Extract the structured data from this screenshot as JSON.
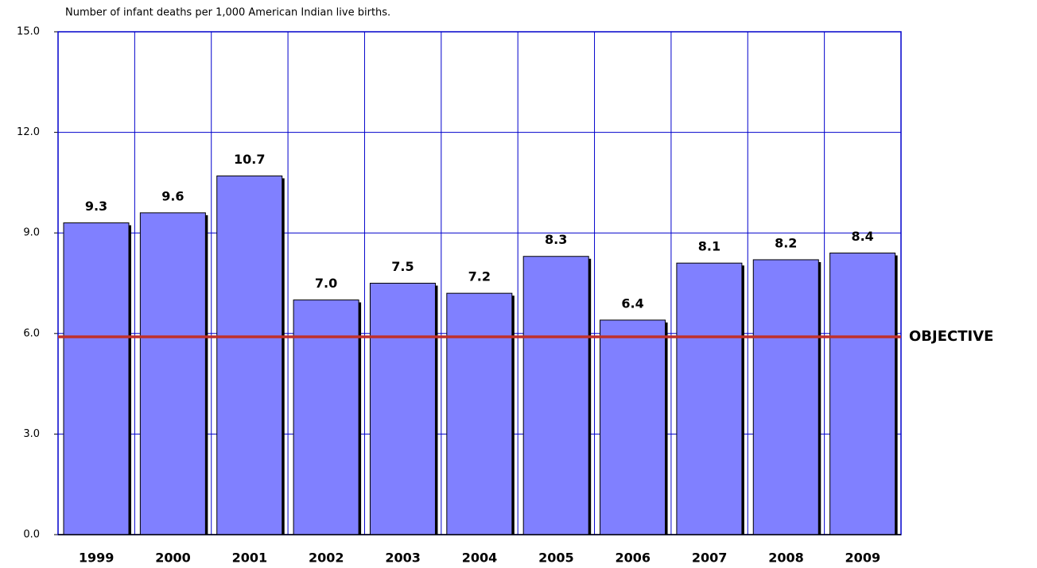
{
  "chart_data": {
    "type": "bar",
    "subtitle": "Number of infant deaths per 1,000 American Indian live births.",
    "categories": [
      "1999",
      "2000",
      "2001",
      "2002",
      "2003",
      "2004",
      "2005",
      "2006",
      "2007",
      "2008",
      "2009"
    ],
    "values": [
      9.3,
      9.6,
      10.7,
      7.0,
      7.5,
      7.2,
      8.3,
      6.4,
      8.1,
      8.2,
      8.4
    ],
    "value_labels": [
      "9.3",
      "9.6",
      "10.7",
      "7.0",
      "7.5",
      "7.2",
      "8.3",
      "6.4",
      "8.1",
      "8.2",
      "8.4"
    ],
    "color": "#8080ff",
    "ylim": [
      0,
      15
    ],
    "yticks": [
      {
        "value": 0,
        "label": "0.0"
      },
      {
        "value": 3,
        "label": "3.0"
      },
      {
        "value": 6,
        "label": "6.0"
      },
      {
        "value": 9,
        "label": "9.0"
      },
      {
        "value": 12,
        "label": "12.0"
      },
      {
        "value": 15,
        "label": "15.0"
      }
    ],
    "grid": true,
    "objective": {
      "label": "OBJECTIVE",
      "value": 5.9,
      "color": "#c0302a"
    }
  }
}
